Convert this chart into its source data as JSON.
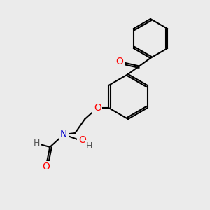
{
  "background_color": "#ebebeb",
  "bond_color": "#000000",
  "bond_width": 1.5,
  "atom_colors": {
    "O": "#ff0000",
    "N": "#0000cc",
    "H": "#555555",
    "C": "#000000"
  },
  "font_size": 9,
  "font_size_small": 8
}
